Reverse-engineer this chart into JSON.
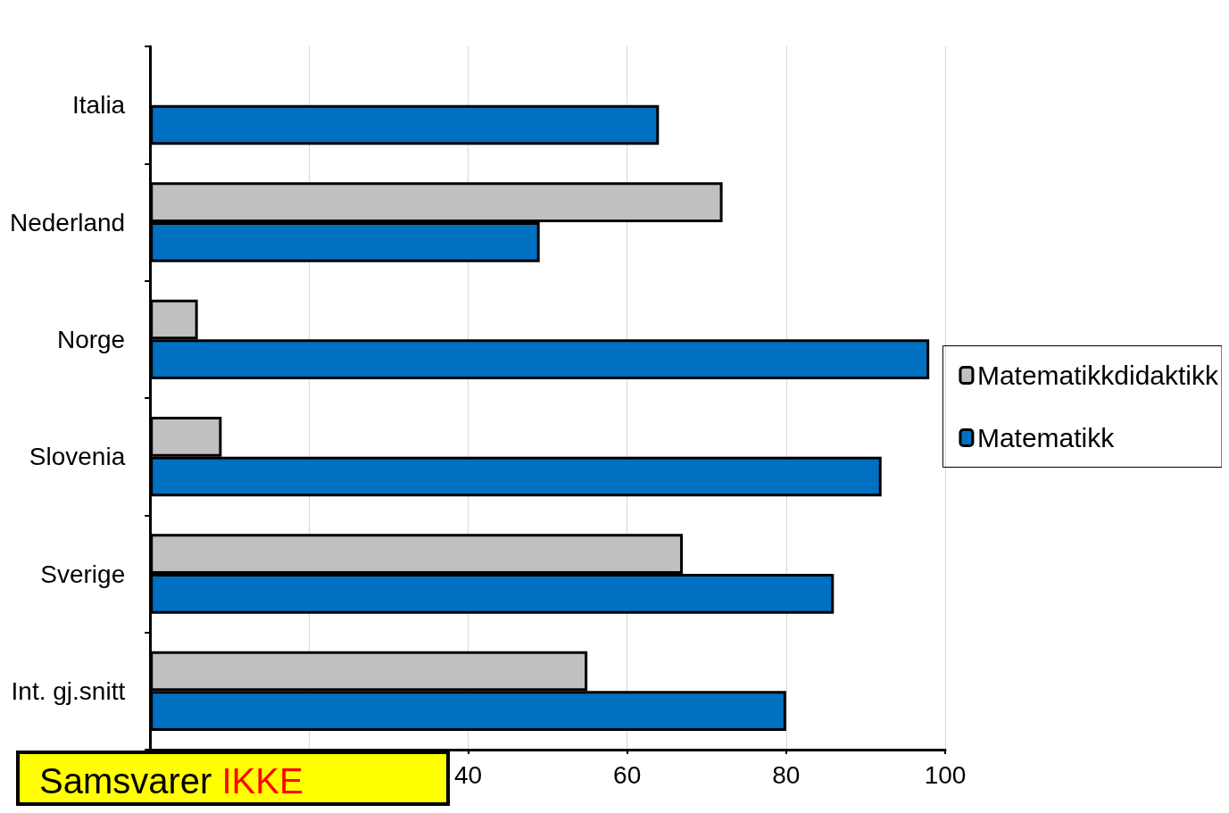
{
  "chart_data": {
    "type": "bar",
    "orientation": "horizontal",
    "categories": [
      "Italia",
      "Nederland",
      "Norge",
      "Slovenia",
      "Sverige",
      "Int. gj.snitt"
    ],
    "series": [
      {
        "name": "Matematikkdidaktikk",
        "color": "#c0c0c0",
        "values": [
          null,
          72,
          6,
          9,
          67,
          55
        ]
      },
      {
        "name": "Matematikk",
        "color": "#0070c0",
        "values": [
          64,
          49,
          98,
          92,
          86,
          80
        ]
      }
    ],
    "xlim": [
      0,
      100
    ],
    "xticks": [
      {
        "value": 0,
        "label": null
      },
      {
        "value": 20,
        "label": null
      },
      40,
      60,
      80,
      100
    ],
    "grid": "x",
    "legend": "right",
    "annotations": [
      "Samsvarer",
      "IKKE"
    ]
  }
}
